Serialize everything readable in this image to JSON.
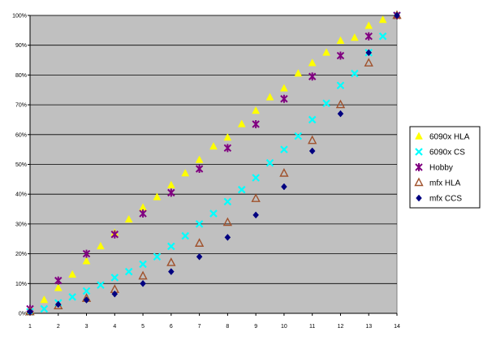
{
  "chart_data": {
    "type": "scatter",
    "title": "",
    "xlabel": "",
    "ylabel": "",
    "xlim": [
      1,
      14
    ],
    "ylim": [
      0,
      100
    ],
    "x_ticks": [
      "1",
      "2",
      "3",
      "4",
      "5",
      "6",
      "7",
      "8",
      "9",
      "10",
      "11",
      "12",
      "13",
      "14"
    ],
    "y_ticks": [
      "0%",
      "10%",
      "20%",
      "30%",
      "40%",
      "50%",
      "60%",
      "70%",
      "80%",
      "90%",
      "100%"
    ],
    "grid": "horizontal",
    "plot_background": "#c0c0c0",
    "legend_position": "right",
    "series": [
      {
        "name": "6090x HLA",
        "marker": "triangle",
        "color": "#ffff00",
        "points": [
          [
            1,
            1
          ],
          [
            1.5,
            4.5
          ],
          [
            2,
            8.5
          ],
          [
            2.5,
            13
          ],
          [
            3,
            17.5
          ],
          [
            3.5,
            22.5
          ],
          [
            4,
            27
          ],
          [
            4.5,
            31.5
          ],
          [
            5,
            35.5
          ],
          [
            5.5,
            39
          ],
          [
            6,
            43
          ],
          [
            6.5,
            47
          ],
          [
            7,
            51.5
          ],
          [
            7.5,
            56
          ],
          [
            8,
            59
          ],
          [
            8.5,
            63.5
          ],
          [
            9,
            68
          ],
          [
            9.5,
            72.5
          ],
          [
            10,
            75.5
          ],
          [
            10.5,
            80.5
          ],
          [
            11,
            84
          ],
          [
            11.5,
            87.5
          ],
          [
            12,
            91.5
          ],
          [
            12.5,
            92.5
          ],
          [
            13,
            96.5
          ],
          [
            13.5,
            98.5
          ],
          [
            14,
            100
          ]
        ]
      },
      {
        "name": "6090x CS",
        "marker": "x",
        "color": "#00ffff",
        "points": [
          [
            1,
            0.5
          ],
          [
            1.5,
            1.5
          ],
          [
            2,
            3.5
          ],
          [
            2.5,
            5.5
          ],
          [
            3,
            7.5
          ],
          [
            3.5,
            9.5
          ],
          [
            4,
            12
          ],
          [
            4.5,
            14
          ],
          [
            5,
            16.5
          ],
          [
            5.5,
            19
          ],
          [
            6,
            22.5
          ],
          [
            6.5,
            26
          ],
          [
            7,
            30
          ],
          [
            7.5,
            33.5
          ],
          [
            8,
            37.5
          ],
          [
            8.5,
            41.5
          ],
          [
            9,
            45.5
          ],
          [
            9.5,
            50.5
          ],
          [
            10,
            55
          ],
          [
            10.5,
            59.5
          ],
          [
            11,
            65
          ],
          [
            11.5,
            70.5
          ],
          [
            12,
            76.5
          ],
          [
            12.5,
            80.5
          ],
          [
            13,
            87.5
          ],
          [
            13.5,
            93
          ],
          [
            14,
            100
          ]
        ]
      },
      {
        "name": "Hobby",
        "marker": "star",
        "color": "#800080",
        "points": [
          [
            1,
            1.5
          ],
          [
            2,
            11
          ],
          [
            3,
            20
          ],
          [
            4,
            26.5
          ],
          [
            5,
            33.5
          ],
          [
            6,
            40.5
          ],
          [
            7,
            48.5
          ],
          [
            8,
            55.5
          ],
          [
            9,
            63.5
          ],
          [
            10,
            72
          ],
          [
            11,
            79.5
          ],
          [
            12,
            86.5
          ],
          [
            13,
            93
          ],
          [
            14,
            100
          ]
        ]
      },
      {
        "name": "mfx HLA",
        "marker": "triangle-open",
        "color": "#a0522d",
        "points": [
          [
            1,
            0.5
          ],
          [
            2,
            2.5
          ],
          [
            3,
            5
          ],
          [
            4,
            8
          ],
          [
            5,
            12.5
          ],
          [
            6,
            17
          ],
          [
            7,
            23.5
          ],
          [
            8,
            30.5
          ],
          [
            9,
            38.5
          ],
          [
            10,
            47
          ],
          [
            11,
            58
          ],
          [
            12,
            70
          ],
          [
            13,
            84
          ],
          [
            14,
            100
          ]
        ]
      },
      {
        "name": "mfx CCS",
        "marker": "diamond",
        "color": "#000080",
        "points": [
          [
            1,
            0.5
          ],
          [
            2,
            3
          ],
          [
            3,
            4.5
          ],
          [
            4,
            6.5
          ],
          [
            5,
            10
          ],
          [
            6,
            14
          ],
          [
            7,
            19
          ],
          [
            8,
            25.5
          ],
          [
            9,
            33
          ],
          [
            10,
            42.5
          ],
          [
            11,
            54.5
          ],
          [
            12,
            67
          ],
          [
            13,
            87.5
          ],
          [
            14,
            100
          ]
        ]
      }
    ]
  }
}
